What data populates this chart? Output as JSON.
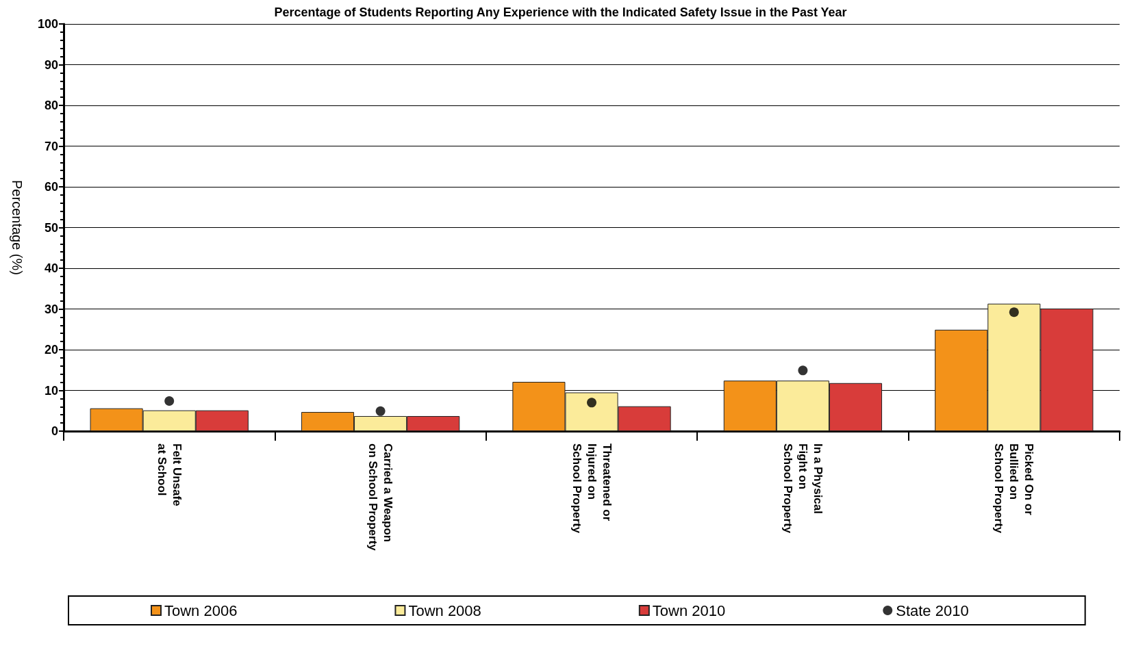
{
  "chart_data": {
    "type": "bar",
    "title": "Percentage of Students Reporting Any Experience with the Indicated Safety Issue in the Past Year",
    "ylabel": "Percentage (%)",
    "categories": [
      "Felt Unsafe\nat School",
      "Carried a Weapon\non School Property",
      "Threatened or\nInjured on\nSchool Property",
      "In a Physical\nFight on\nSchool Property",
      "Picked On or\nBullied on\nSchool Property"
    ],
    "series": [
      {
        "name": "Town 2006",
        "color": "#f39219",
        "values": [
          5.6,
          4.7,
          12.1,
          12.4,
          24.9
        ]
      },
      {
        "name": "Town 2008",
        "color": "#fbeb9a",
        "values": [
          5.1,
          3.7,
          9.5,
          12.4,
          31.3
        ]
      },
      {
        "name": "Town 2010",
        "color": "#d83c3a",
        "values": [
          5.1,
          3.7,
          6.1,
          11.8,
          30.1
        ]
      },
      {
        "name": "State 2010",
        "type": "scatter",
        "color": "#000000",
        "marker": "circle",
        "x": [
          "Felt Unsafe\nat School",
          "Carried a Weapon\non School Property",
          "Threatened or\nInjured on\nSchool Property",
          "In a Physical\nFight on\nSchool Property",
          "Picked On or\nBullied on\nSchool Property"
        ],
        "values": [
          7.4,
          4.9,
          7.0,
          14.9,
          29.2
        ]
      }
    ],
    "ylim": [
      0,
      100
    ],
    "yticks": [
      0,
      10,
      20,
      30,
      40,
      50,
      60,
      70,
      80,
      90,
      100
    ],
    "grid": "y",
    "legend": "bottom"
  }
}
